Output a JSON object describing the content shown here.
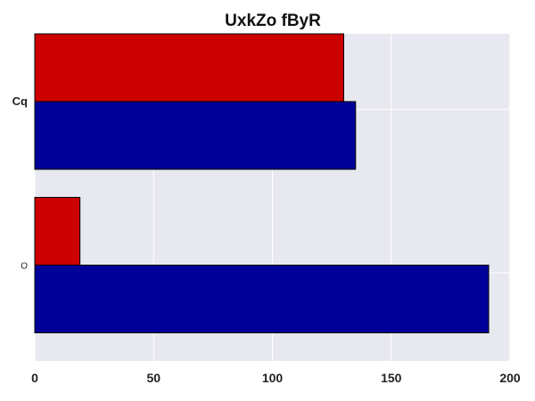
{
  "chart_data": {
    "type": "bar",
    "orientation": "horizontal",
    "title": "UxkZo fByR",
    "xlabel": "",
    "ylabel": "",
    "categories": [
      "Cq",
      "O"
    ],
    "series": [
      {
        "values": [
          130,
          19
        ],
        "color": "#cc0000"
      },
      {
        "values": [
          135,
          191
        ],
        "color": "#000099"
      }
    ],
    "xlim": [
      0,
      200
    ],
    "xticks": [
      0,
      50,
      100,
      150,
      200
    ],
    "grid": true,
    "background": "#e8e8f0"
  }
}
